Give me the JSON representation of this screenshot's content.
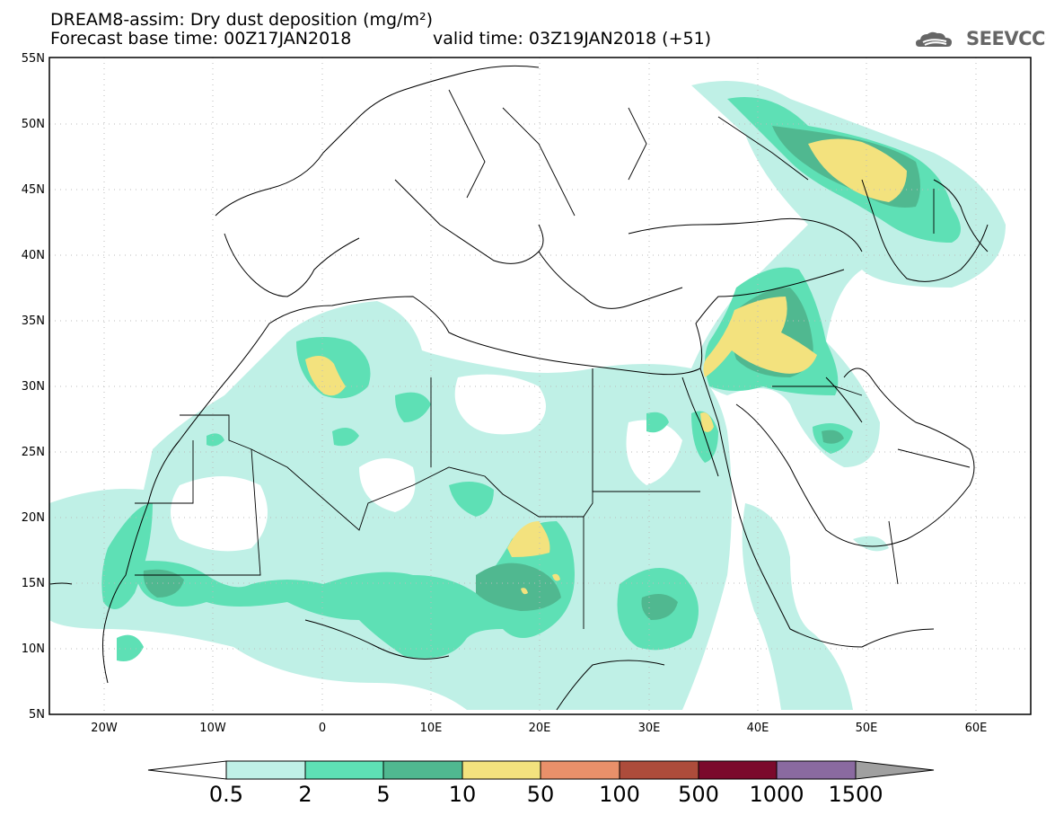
{
  "header": {
    "title": "DREAM8-assim: Dry dust deposition (mg/m²)",
    "base_time": "Forecast base time: 00Z17JAN2018",
    "valid_time": "valid time: 03Z19JAN2018 (+51)",
    "logo_text": "SEEVCCC"
  },
  "map": {
    "lat_labels": [
      "55N",
      "50N",
      "45N",
      "40N",
      "35N",
      "30N",
      "25N",
      "20N",
      "15N",
      "10N",
      "5N"
    ],
    "lon_labels": [
      "20W",
      "10W",
      "0",
      "10E",
      "20E",
      "30E",
      "40E",
      "50E",
      "60E"
    ],
    "lat_range": [
      5,
      55
    ],
    "lon_range": [
      -25,
      65
    ],
    "gridlines": "dotted"
  },
  "legend": {
    "labels": [
      "0.5",
      "2",
      "5",
      "10",
      "50",
      "100",
      "500",
      "1000",
      "1500"
    ],
    "colors": [
      "#bff0e6",
      "#5ee0b5",
      "#50b890",
      "#f3e27e",
      "#e9906a",
      "#ad4c3b",
      "#7b0a2c",
      "#8a6aa0"
    ],
    "left_arrow_color": "#ffffff",
    "right_arrow_color": "#a0a0a0"
  }
}
